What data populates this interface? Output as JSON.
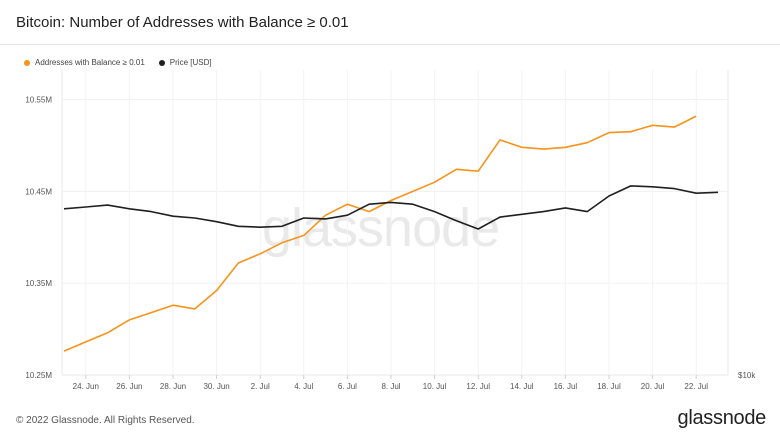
{
  "header": {
    "title": "Bitcoin: Number of Addresses with Balance ≥ 0.01"
  },
  "legend": [
    {
      "label": "Addresses with Balance ≥ 0.01",
      "color": "#f7931a"
    },
    {
      "label": "Price [USD]",
      "color": "#1f1f1f"
    }
  ],
  "watermark": "glassnode",
  "footer": {
    "copyright": "© 2022 Glassnode. All Rights Reserved.",
    "logo": "glassnode"
  },
  "chart_data": {
    "type": "line",
    "x": [
      "23 Jun",
      "24 Jun",
      "25 Jun",
      "26 Jun",
      "27 Jun",
      "28 Jun",
      "29 Jun",
      "30 Jun",
      "1 Jul",
      "2 Jul",
      "3 Jul",
      "4 Jul",
      "5 Jul",
      "6 Jul",
      "7 Jul",
      "8 Jul",
      "9 Jul",
      "10 Jul",
      "11 Jul",
      "12 Jul",
      "13 Jul",
      "14 Jul",
      "15 Jul",
      "16 Jul",
      "17 Jul",
      "18 Jul",
      "19 Jul",
      "20 Jul",
      "21 Jul",
      "22 Jul",
      "23 Jul"
    ],
    "xticks": [
      "24. Jun",
      "26. Jun",
      "28. Jun",
      "30. Jun",
      "2. Jul",
      "4. Jul",
      "6. Jul",
      "8. Jul",
      "10. Jul",
      "12. Jul",
      "14. Jul",
      "16. Jul",
      "18. Jul",
      "20. Jul",
      "22. Jul"
    ],
    "yticks_left": [
      "10.25M",
      "10.35M",
      "10.45M",
      "10.55M"
    ],
    "ylim_left": [
      10.25,
      10.58
    ],
    "yticks_right": [
      "$10k"
    ],
    "series": [
      {
        "name": "Addresses with Balance ≥ 0.01",
        "axis": "left",
        "color": "#f7931a",
        "values": [
          10.276,
          10.286,
          10.296,
          10.31,
          10.318,
          10.326,
          10.322,
          10.342,
          10.372,
          10.382,
          10.394,
          10.402,
          10.424,
          10.436,
          10.428,
          10.44,
          10.45,
          10.46,
          10.474,
          10.472,
          10.506,
          10.498,
          10.496,
          10.498,
          10.503,
          10.514,
          10.515,
          10.522,
          10.52,
          10.532,
          null
        ]
      },
      {
        "name": "Price [USD]",
        "axis": "left",
        "color": "#1f1f1f",
        "values": [
          10.431,
          10.433,
          10.435,
          10.431,
          10.428,
          10.423,
          10.421,
          10.417,
          10.412,
          10.411,
          10.412,
          10.421,
          10.42,
          10.424,
          10.436,
          10.438,
          10.436,
          10.428,
          10.418,
          10.409,
          10.422,
          10.425,
          10.428,
          10.432,
          10.428,
          10.445,
          10.456,
          10.455,
          10.453,
          10.448,
          10.449
        ]
      }
    ]
  }
}
